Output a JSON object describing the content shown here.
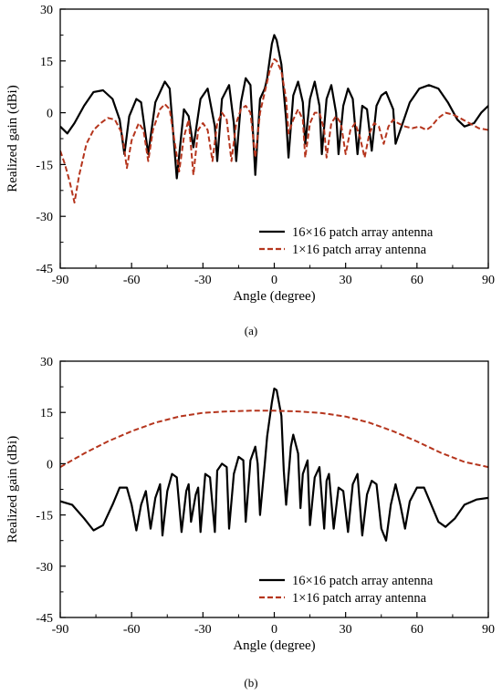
{
  "chart_data": [
    {
      "type": "line",
      "panel_label": "(a)",
      "xlabel": "Angle (degree)",
      "ylabel": "Realized gain (dBi)",
      "xlim": [
        -90,
        90
      ],
      "ylim": [
        -45,
        30
      ],
      "xticks": [
        -90,
        -60,
        -30,
        0,
        30,
        60,
        90
      ],
      "yticks": [
        30,
        15,
        0,
        -15,
        -30,
        -45
      ],
      "legend_position": "bottom-right",
      "grid": false,
      "series": [
        {
          "name": "16×16 patch array antenna",
          "color": "#000000",
          "style": "solid",
          "points": [
            [
              -90,
              -4
            ],
            [
              -87,
              -6
            ],
            [
              -84,
              -3
            ],
            [
              -80,
              2
            ],
            [
              -76,
              6
            ],
            [
              -72,
              6.5
            ],
            [
              -68,
              4
            ],
            [
              -65,
              -2
            ],
            [
              -63,
              -12
            ],
            [
              -61,
              -1
            ],
            [
              -58,
              4
            ],
            [
              -56,
              3
            ],
            [
              -53,
              -12
            ],
            [
              -50,
              3
            ],
            [
              -46,
              9
            ],
            [
              -44,
              7
            ],
            [
              -41,
              -19
            ],
            [
              -38,
              1
            ],
            [
              -36,
              -1
            ],
            [
              -34,
              -10
            ],
            [
              -31,
              4
            ],
            [
              -28,
              7
            ],
            [
              -25,
              -4
            ],
            [
              -24,
              -14
            ],
            [
              -22,
              4
            ],
            [
              -19,
              8
            ],
            [
              -17,
              -3
            ],
            [
              -16,
              -14
            ],
            [
              -14,
              3
            ],
            [
              -12,
              10
            ],
            [
              -10,
              8
            ],
            [
              -8,
              -18
            ],
            [
              -6,
              4
            ],
            [
              -4,
              7
            ],
            [
              -3,
              10
            ],
            [
              -1,
              20
            ],
            [
              0,
              22.5
            ],
            [
              1,
              21
            ],
            [
              3,
              14
            ],
            [
              5,
              -2
            ],
            [
              6,
              -13
            ],
            [
              8,
              5
            ],
            [
              10,
              9
            ],
            [
              12,
              3
            ],
            [
              13,
              -9
            ],
            [
              15,
              4
            ],
            [
              17,
              9
            ],
            [
              19,
              2
            ],
            [
              20,
              -12
            ],
            [
              22,
              4
            ],
            [
              24,
              8
            ],
            [
              26,
              0
            ],
            [
              27,
              -12
            ],
            [
              29,
              2
            ],
            [
              31,
              7
            ],
            [
              33,
              4
            ],
            [
              35,
              -12
            ],
            [
              37,
              2
            ],
            [
              39,
              1
            ],
            [
              41,
              -11
            ],
            [
              43,
              2
            ],
            [
              45,
              5
            ],
            [
              47,
              6
            ],
            [
              50,
              1
            ],
            [
              51,
              -9
            ],
            [
              54,
              -3
            ],
            [
              57,
              3
            ],
            [
              61,
              7
            ],
            [
              65,
              8
            ],
            [
              69,
              7
            ],
            [
              73,
              3
            ],
            [
              77,
              -2
            ],
            [
              80,
              -4
            ],
            [
              84,
              -3
            ],
            [
              87,
              0
            ],
            [
              90,
              2
            ]
          ]
        },
        {
          "name": "1×16 patch array antenna",
          "color": "#b5351d",
          "style": "dashed",
          "points": [
            [
              -90,
              -11
            ],
            [
              -88,
              -15
            ],
            [
              -86,
              -20
            ],
            [
              -84,
              -26
            ],
            [
              -82,
              -18
            ],
            [
              -79,
              -9
            ],
            [
              -76,
              -5
            ],
            [
              -73,
              -3
            ],
            [
              -70,
              -1.5
            ],
            [
              -67,
              -2
            ],
            [
              -64,
              -6
            ],
            [
              -62,
              -16
            ],
            [
              -60,
              -8
            ],
            [
              -57,
              -3
            ],
            [
              -55,
              -5
            ],
            [
              -53,
              -14
            ],
            [
              -51,
              -5
            ],
            [
              -48,
              1
            ],
            [
              -46,
              2.5
            ],
            [
              -44,
              1
            ],
            [
              -42,
              -8
            ],
            [
              -40,
              -17
            ],
            [
              -38,
              -7
            ],
            [
              -36,
              -2
            ],
            [
              -34,
              -18
            ],
            [
              -32,
              -5
            ],
            [
              -30,
              -3
            ],
            [
              -28,
              -5
            ],
            [
              -26,
              -14
            ],
            [
              -24,
              -3
            ],
            [
              -22,
              0
            ],
            [
              -20,
              -2
            ],
            [
              -18,
              -14
            ],
            [
              -16,
              -3
            ],
            [
              -14,
              1
            ],
            [
              -12,
              2
            ],
            [
              -10,
              0
            ],
            [
              -8,
              -13
            ],
            [
              -6,
              0
            ],
            [
              -4,
              6
            ],
            [
              -2,
              12
            ],
            [
              0,
              15.5
            ],
            [
              1,
              15
            ],
            [
              3,
              12
            ],
            [
              5,
              4
            ],
            [
              6,
              -6
            ],
            [
              8,
              -2
            ],
            [
              10,
              1
            ],
            [
              12,
              -2
            ],
            [
              13,
              -13
            ],
            [
              15,
              -3
            ],
            [
              17,
              0
            ],
            [
              19,
              0
            ],
            [
              21,
              -5
            ],
            [
              22,
              -13
            ],
            [
              24,
              -3
            ],
            [
              26,
              -1
            ],
            [
              28,
              -3
            ],
            [
              30,
              -12
            ],
            [
              32,
              -5
            ],
            [
              34,
              -3
            ],
            [
              36,
              -7
            ],
            [
              38,
              -13
            ],
            [
              40,
              -6
            ],
            [
              42,
              -3
            ],
            [
              44,
              -4
            ],
            [
              46,
              -9
            ],
            [
              48,
              -4
            ],
            [
              50,
              -2
            ],
            [
              52,
              -3
            ],
            [
              55,
              -4
            ],
            [
              58,
              -4.5
            ],
            [
              61,
              -4
            ],
            [
              64,
              -5
            ],
            [
              66,
              -4
            ],
            [
              69,
              -1.5
            ],
            [
              72,
              0
            ],
            [
              75,
              -0.5
            ],
            [
              78,
              -1.5
            ],
            [
              82,
              -3
            ],
            [
              86,
              -4.5
            ],
            [
              90,
              -5
            ]
          ]
        }
      ]
    },
    {
      "type": "line",
      "panel_label": "(b)",
      "xlabel": "Angle (degree)",
      "ylabel": "Realized gain (dBi)",
      "xlim": [
        -90,
        90
      ],
      "ylim": [
        -45,
        30
      ],
      "xticks": [
        -90,
        -60,
        -30,
        0,
        30,
        60,
        90
      ],
      "yticks": [
        30,
        15,
        0,
        -15,
        -30,
        -45
      ],
      "legend_position": "bottom-right",
      "grid": false,
      "series": [
        {
          "name": "16×16 patch array antenna",
          "color": "#000000",
          "style": "solid",
          "points": [
            [
              -90,
              -11
            ],
            [
              -85,
              -12
            ],
            [
              -80,
              -16
            ],
            [
              -76,
              -19.5
            ],
            [
              -72,
              -18
            ],
            [
              -68,
              -12
            ],
            [
              -65,
              -7
            ],
            [
              -62,
              -7
            ],
            [
              -60,
              -12
            ],
            [
              -58,
              -19.5
            ],
            [
              -56,
              -12
            ],
            [
              -54,
              -8
            ],
            [
              -52,
              -19
            ],
            [
              -50,
              -10
            ],
            [
              -48,
              -6
            ],
            [
              -47,
              -21
            ],
            [
              -45,
              -8
            ],
            [
              -43,
              -3
            ],
            [
              -41,
              -4
            ],
            [
              -39,
              -20
            ],
            [
              -37,
              -8
            ],
            [
              -36,
              -6
            ],
            [
              -35,
              -17
            ],
            [
              -33,
              -9
            ],
            [
              -32,
              -7
            ],
            [
              -31,
              -20
            ],
            [
              -29,
              -3
            ],
            [
              -27,
              -4
            ],
            [
              -25,
              -20
            ],
            [
              -24,
              -2
            ],
            [
              -22,
              0
            ],
            [
              -20,
              -1
            ],
            [
              -19,
              -19
            ],
            [
              -17,
              -3
            ],
            [
              -15,
              2
            ],
            [
              -13,
              1
            ],
            [
              -12,
              -17
            ],
            [
              -10,
              1
            ],
            [
              -8,
              5
            ],
            [
              -7,
              0
            ],
            [
              -6,
              -15
            ],
            [
              -4,
              0
            ],
            [
              -3,
              8
            ],
            [
              -1,
              18
            ],
            [
              0,
              22
            ],
            [
              1,
              21.5
            ],
            [
              3,
              14
            ],
            [
              4,
              -2
            ],
            [
              5,
              -12
            ],
            [
              7,
              5
            ],
            [
              8,
              8.5
            ],
            [
              10,
              3
            ],
            [
              11,
              -13
            ],
            [
              12,
              -3
            ],
            [
              14,
              1
            ],
            [
              15,
              -18
            ],
            [
              17,
              -4
            ],
            [
              19,
              -1
            ],
            [
              21,
              -19
            ],
            [
              22,
              -5
            ],
            [
              23,
              -3
            ],
            [
              25,
              -19
            ],
            [
              27,
              -7
            ],
            [
              29,
              -8
            ],
            [
              31,
              -20
            ],
            [
              33,
              -6
            ],
            [
              35,
              -3
            ],
            [
              37,
              -21
            ],
            [
              39,
              -9
            ],
            [
              41,
              -5
            ],
            [
              43,
              -6
            ],
            [
              45,
              -19
            ],
            [
              47,
              -22.5
            ],
            [
              49,
              -12
            ],
            [
              51,
              -6
            ],
            [
              53,
              -12
            ],
            [
              55,
              -19
            ],
            [
              57,
              -11
            ],
            [
              60,
              -7
            ],
            [
              63,
              -7
            ],
            [
              66,
              -12
            ],
            [
              69,
              -17
            ],
            [
              72,
              -18.5
            ],
            [
              76,
              -16
            ],
            [
              80,
              -12
            ],
            [
              85,
              -10.5
            ],
            [
              90,
              -10
            ]
          ]
        },
        {
          "name": "1×16 patch array antenna",
          "color": "#b5351d",
          "style": "dashed",
          "points": [
            [
              -90,
              -1
            ],
            [
              -80,
              3
            ],
            [
              -70,
              6.5
            ],
            [
              -60,
              9.5
            ],
            [
              -50,
              12
            ],
            [
              -40,
              13.8
            ],
            [
              -30,
              14.9
            ],
            [
              -20,
              15.3
            ],
            [
              -10,
              15.5
            ],
            [
              0,
              15.5
            ],
            [
              10,
              15.3
            ],
            [
              20,
              14.8
            ],
            [
              30,
              13.8
            ],
            [
              40,
              12
            ],
            [
              50,
              9.5
            ],
            [
              60,
              6.5
            ],
            [
              70,
              3.2
            ],
            [
              80,
              0.5
            ],
            [
              90,
              -1
            ]
          ]
        }
      ]
    }
  ]
}
